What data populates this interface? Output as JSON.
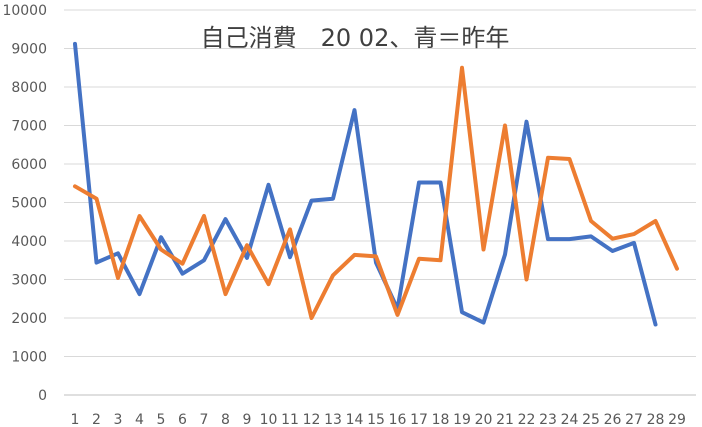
{
  "chart_data": {
    "type": "line",
    "title": "自己消費　20 02、青＝昨年",
    "xlabel": "",
    "ylabel": "",
    "categories": [
      "1",
      "2",
      "3",
      "4",
      "5",
      "6",
      "7",
      "8",
      "9",
      "10",
      "11",
      "12",
      "13",
      "14",
      "15",
      "16",
      "17",
      "18",
      "19",
      "20",
      "21",
      "22",
      "23",
      "24",
      "25",
      "26",
      "27",
      "28",
      "29"
    ],
    "ylim": [
      0,
      10000
    ],
    "yticks": [
      0,
      1000,
      2000,
      3000,
      4000,
      5000,
      6000,
      7000,
      8000,
      9000,
      10000
    ],
    "grid": "horizontal",
    "legend": "none",
    "series": [
      {
        "color": "#4472c4",
        "values": [
          9120,
          3440,
          3680,
          2620,
          4100,
          3150,
          3500,
          4570,
          3560,
          5460,
          3580,
          5050,
          5100,
          7400,
          3440,
          2240,
          5520,
          5520,
          2150,
          1880,
          3650,
          7100,
          4050,
          4050,
          4120,
          3740,
          3950,
          1830,
          null
        ]
      },
      {
        "color": "#ed7d31",
        "values": [
          5420,
          5100,
          3040,
          4650,
          3780,
          3410,
          4650,
          2620,
          3890,
          2880,
          4300,
          2000,
          3110,
          3640,
          3600,
          2080,
          3540,
          3500,
          8500,
          3780,
          7000,
          3000,
          6160,
          6130,
          4520,
          4060,
          4180,
          4520,
          3280
        ]
      }
    ]
  }
}
